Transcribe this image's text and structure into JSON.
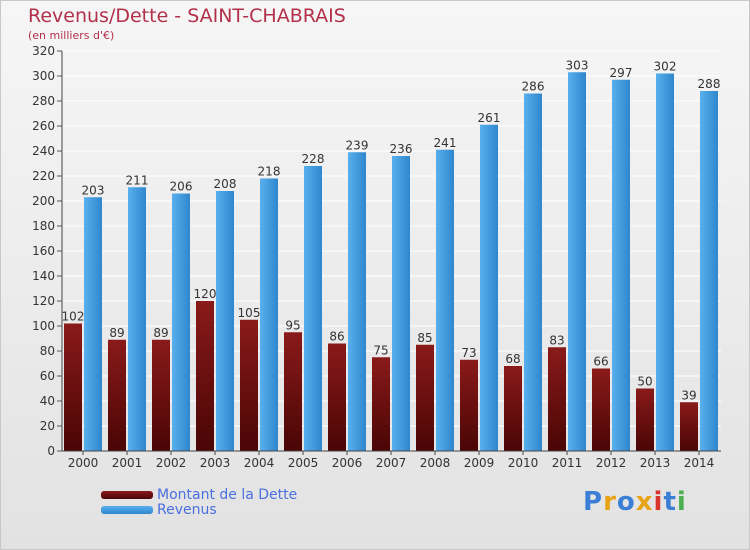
{
  "header": {
    "title": "Revenus/Dette - SAINT-CHABRAIS",
    "subtitle": "(en milliers d'€)"
  },
  "legend": {
    "dette_label": "Montant de la Dette",
    "revenus_label": "Revenus"
  },
  "brand": {
    "text": "Proxiti"
  },
  "colors": {
    "dette": "#6e0d0d",
    "revenus": "#3b9ae0",
    "title": "#b3304a",
    "legend_text": "#4a6fe0"
  },
  "chart_data": {
    "type": "bar",
    "categories": [
      "2000",
      "2001",
      "2002",
      "2003",
      "2004",
      "2005",
      "2006",
      "2007",
      "2008",
      "2009",
      "2010",
      "2011",
      "2012",
      "2013",
      "2014"
    ],
    "series": [
      {
        "name": "Montant de la Dette",
        "values": [
          102,
          89,
          89,
          120,
          105,
          95,
          86,
          75,
          85,
          73,
          68,
          83,
          66,
          50,
          39
        ]
      },
      {
        "name": "Revenus",
        "values": [
          203,
          211,
          206,
          208,
          218,
          228,
          239,
          236,
          241,
          261,
          286,
          303,
          297,
          302,
          288
        ]
      }
    ],
    "title": "Revenus/Dette - SAINT-CHABRAIS",
    "subtitle": "(en milliers d'€)",
    "ylim": [
      0,
      320
    ],
    "yticks": [
      0,
      20,
      40,
      60,
      80,
      100,
      120,
      140,
      160,
      180,
      200,
      220,
      240,
      260,
      280,
      300,
      320
    ],
    "grid": true,
    "legend_position": "bottom-left"
  }
}
